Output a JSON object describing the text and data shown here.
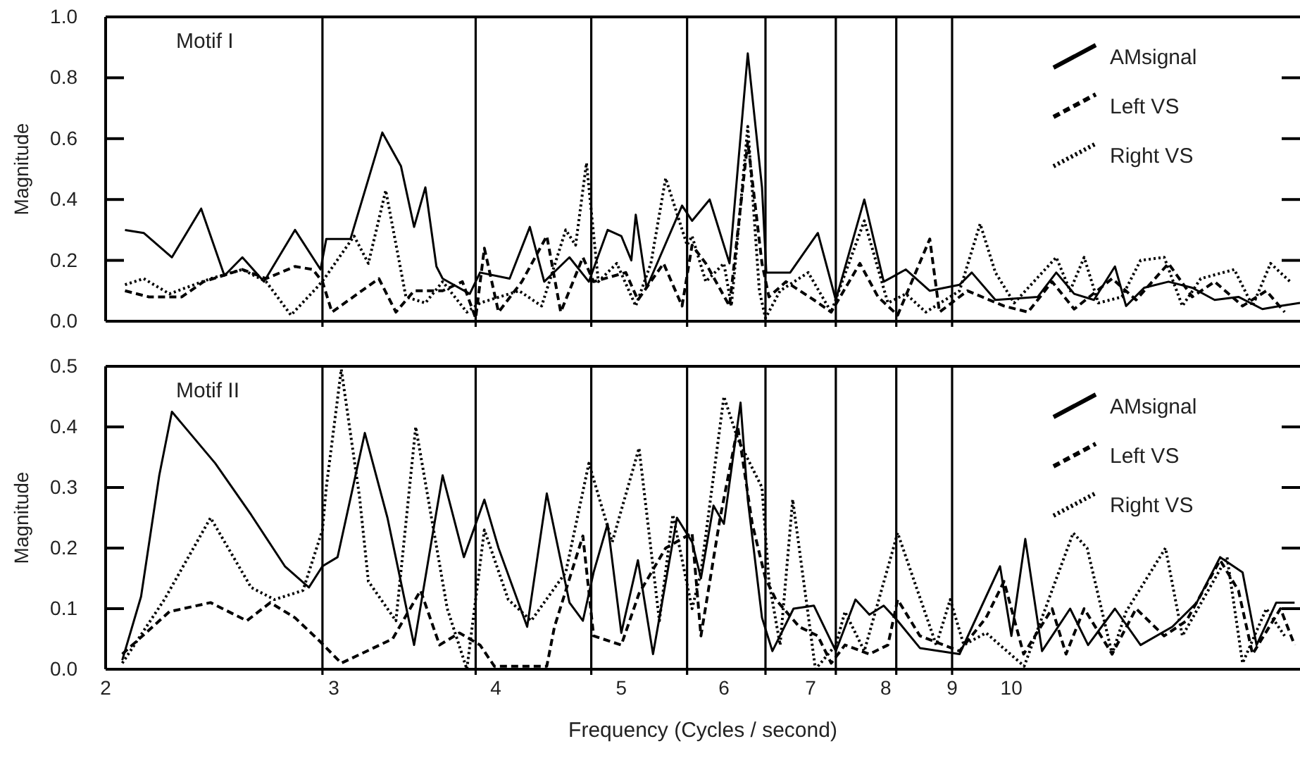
{
  "chart_data": [
    {
      "type": "line",
      "ylabel": "Magnitude",
      "annotations": [
        "Motif I"
      ],
      "log": "x",
      "xlim": [
        2,
        16.7
      ],
      "ylim": [
        0,
        1
      ],
      "xticks": [
        2,
        3,
        4,
        5,
        6,
        7,
        8,
        9,
        10
      ],
      "yticks": [
        {
          "value": 0,
          "label": "0.0"
        },
        {
          "value": 0.2,
          "label": "0.2"
        },
        {
          "value": 0.4,
          "label": "0.4"
        },
        {
          "value": 0.6,
          "label": "0.6"
        },
        {
          "value": 0.8,
          "label": "0.8"
        },
        {
          "value": 1,
          "label": "1.0"
        }
      ],
      "tick_labels": "y",
      "legend": "top right",
      "ref_lines": [
        {
          "axis": "x",
          "value": 2.94
        },
        {
          "axis": "x",
          "value": 3.86
        },
        {
          "axis": "x",
          "value": 4.74
        },
        {
          "axis": "x",
          "value": 5.62
        },
        {
          "axis": "x",
          "value": 6.46
        },
        {
          "axis": "x",
          "value": 7.32
        },
        {
          "axis": "x",
          "value": 8.15
        },
        {
          "axis": "x",
          "value": 9.0
        }
      ],
      "series": [
        {
          "name": "AMsignal",
          "color": "#000000",
          "line_style": "solid",
          "x": [
            2.07,
            2.14,
            2.25,
            2.37,
            2.47,
            2.55,
            2.65,
            2.8,
            2.93,
            2.96,
            3.09,
            3.27,
            3.38,
            3.46,
            3.53,
            3.6,
            3.64,
            3.82,
            3.89,
            4.1,
            4.25,
            4.36,
            4.56,
            4.72,
            4.88,
            5.0,
            5.09,
            5.13,
            5.23,
            5.57,
            5.67,
            5.85,
            6.06,
            6.26,
            6.42,
            6.47,
            6.75,
            7.09,
            7.32,
            7.7,
            7.97,
            8.29,
            8.65,
            9.12,
            9.32,
            9.72,
            10.48,
            10.83,
            11.18,
            11.58,
            12.02,
            12.26,
            12.66,
            13.22,
            13.79,
            14.35,
            14.97,
            15.62,
            16.1,
            16.7
          ],
          "values": [
            0.3,
            0.29,
            0.21,
            0.37,
            0.15,
            0.21,
            0.13,
            0.3,
            0.17,
            0.27,
            0.27,
            0.62,
            0.51,
            0.31,
            0.44,
            0.18,
            0.14,
            0.09,
            0.16,
            0.14,
            0.31,
            0.13,
            0.21,
            0.13,
            0.3,
            0.28,
            0.2,
            0.35,
            0.11,
            0.38,
            0.33,
            0.4,
            0.19,
            0.88,
            0.44,
            0.16,
            0.16,
            0.29,
            0.07,
            0.4,
            0.13,
            0.17,
            0.1,
            0.12,
            0.16,
            0.07,
            0.08,
            0.16,
            0.09,
            0.07,
            0.18,
            0.05,
            0.11,
            0.13,
            0.11,
            0.07,
            0.08,
            0.04,
            0.05,
            0.06
          ]
        },
        {
          "name": "Left VS",
          "color": "#000000",
          "line_style": "dashed",
          "x": [
            2.07,
            2.16,
            2.29,
            2.38,
            2.55,
            2.66,
            2.8,
            2.89,
            2.94,
            2.99,
            3.25,
            3.35,
            3.46,
            3.64,
            3.77,
            3.86,
            3.92,
            4.02,
            4.19,
            4.38,
            4.49,
            4.67,
            4.76,
            5.04,
            5.15,
            5.39,
            5.57,
            5.67,
            5.81,
            6.06,
            6.26,
            6.42,
            6.5,
            6.7,
            7.04,
            7.26,
            7.64,
            7.89,
            8.17,
            8.65,
            8.8,
            9.25,
            9.87,
            10.3,
            10.75,
            11.18,
            11.96,
            12.48,
            13.22,
            13.79,
            14.35,
            15.08,
            15.73,
            16.25
          ],
          "values": [
            0.1,
            0.08,
            0.08,
            0.13,
            0.17,
            0.14,
            0.18,
            0.17,
            0.13,
            0.03,
            0.14,
            0.03,
            0.1,
            0.1,
            0.13,
            0.01,
            0.24,
            0.03,
            0.13,
            0.28,
            0.03,
            0.21,
            0.13,
            0.16,
            0.07,
            0.19,
            0.05,
            0.25,
            0.19,
            0.05,
            0.59,
            0.19,
            0.08,
            0.13,
            0.07,
            0.03,
            0.19,
            0.08,
            0.02,
            0.27,
            0.03,
            0.1,
            0.05,
            0.03,
            0.13,
            0.04,
            0.14,
            0.07,
            0.19,
            0.08,
            0.13,
            0.05,
            0.1,
            0.03
          ]
        },
        {
          "name": "Right VS",
          "color": "#000000",
          "line_style": "dotted",
          "x": [
            2.07,
            2.14,
            2.24,
            2.41,
            2.55,
            2.66,
            2.78,
            2.91,
            2.95,
            3.11,
            3.19,
            3.29,
            3.41,
            3.53,
            3.64,
            3.8,
            3.89,
            4.17,
            4.34,
            4.53,
            4.61,
            4.7,
            4.8,
            4.96,
            5.13,
            5.27,
            5.41,
            5.62,
            5.67,
            5.81,
            6.0,
            6.08,
            6.26,
            6.39,
            6.46,
            6.63,
            6.97,
            7.26,
            7.7,
            8.03,
            8.29,
            8.59,
            9.12,
            9.46,
            9.72,
            10.05,
            10.83,
            11.1,
            11.38,
            11.67,
            12.17,
            12.58,
            13.12,
            13.55,
            14.0,
            14.86,
            15.35,
            15.85,
            16.41
          ],
          "values": [
            0.12,
            0.14,
            0.09,
            0.14,
            0.17,
            0.13,
            0.02,
            0.11,
            0.14,
            0.28,
            0.19,
            0.43,
            0.08,
            0.06,
            0.13,
            0.03,
            0.06,
            0.1,
            0.05,
            0.3,
            0.25,
            0.52,
            0.13,
            0.19,
            0.05,
            0.19,
            0.47,
            0.25,
            0.28,
            0.13,
            0.19,
            0.05,
            0.64,
            0.1,
            0.01,
            0.1,
            0.16,
            0.03,
            0.33,
            0.06,
            0.09,
            0.03,
            0.1,
            0.32,
            0.16,
            0.06,
            0.21,
            0.1,
            0.21,
            0.06,
            0.08,
            0.2,
            0.21,
            0.05,
            0.14,
            0.17,
            0.05,
            0.19,
            0.13
          ]
        }
      ]
    },
    {
      "type": "line",
      "xlabel": "Frequency (Cycles / second)",
      "ylabel": "Magnitude",
      "annotations": [
        "Motif II"
      ],
      "log": "x",
      "xlim": [
        2,
        16.7
      ],
      "ylim": [
        0,
        0.5
      ],
      "xticks": [
        2,
        3,
        4,
        5,
        6,
        7,
        8,
        9,
        10
      ],
      "yticks": [
        {
          "value": 0,
          "label": "0.0"
        },
        {
          "value": 0.1,
          "label": "0.1"
        },
        {
          "value": 0.2,
          "label": "0.2"
        },
        {
          "value": 0.3,
          "label": "0.3"
        },
        {
          "value": 0.4,
          "label": "0.4"
        },
        {
          "value": 0.5,
          "label": "0.5"
        }
      ],
      "legend": "top right",
      "ref_lines": [
        {
          "axis": "x",
          "value": 2.94
        },
        {
          "axis": "x",
          "value": 3.86
        },
        {
          "axis": "x",
          "value": 4.74
        },
        {
          "axis": "x",
          "value": 5.62
        },
        {
          "axis": "x",
          "value": 6.46
        },
        {
          "axis": "x",
          "value": 7.32
        },
        {
          "axis": "x",
          "value": 8.15
        },
        {
          "axis": "x",
          "value": 9.0
        }
      ],
      "series": [
        {
          "name": "AMsignal",
          "color": "#000000",
          "line_style": "solid",
          "x": [
            2.06,
            2.13,
            2.2,
            2.25,
            2.43,
            2.59,
            2.75,
            2.87,
            2.94,
            3.02,
            3.17,
            3.3,
            3.46,
            3.6,
            3.64,
            3.78,
            3.92,
            4.02,
            4.23,
            4.38,
            4.56,
            4.67,
            4.76,
            4.88,
            5.0,
            5.15,
            5.29,
            5.52,
            5.67,
            5.76,
            5.89,
            6.0,
            6.18,
            6.26,
            6.42,
            6.54,
            6.79,
            7.04,
            7.32,
            7.58,
            7.77,
            7.97,
            8.17,
            8.5,
            9.12,
            9.8,
            10.0,
            10.25,
            10.56,
            11.1,
            11.46,
            12.02,
            12.58,
            13.31,
            13.9,
            14.49,
            15.08,
            15.46,
            16.01,
            16.54
          ],
          "values": [
            0.015,
            0.12,
            0.32,
            0.425,
            0.34,
            0.255,
            0.17,
            0.135,
            0.17,
            0.185,
            0.39,
            0.25,
            0.04,
            0.26,
            0.32,
            0.185,
            0.28,
            0.2,
            0.07,
            0.29,
            0.11,
            0.08,
            0.16,
            0.24,
            0.06,
            0.18,
            0.025,
            0.25,
            0.21,
            0.15,
            0.27,
            0.24,
            0.44,
            0.28,
            0.085,
            0.03,
            0.1,
            0.105,
            0.03,
            0.115,
            0.09,
            0.105,
            0.08,
            0.035,
            0.025,
            0.17,
            0.055,
            0.215,
            0.03,
            0.1,
            0.04,
            0.1,
            0.04,
            0.07,
            0.11,
            0.185,
            0.16,
            0.04,
            0.11,
            0.11
          ]
        },
        {
          "name": "Left VS",
          "color": "#000000",
          "line_style": "dashed",
          "x": [
            2.06,
            2.24,
            2.41,
            2.57,
            2.68,
            2.8,
            2.93,
            3.04,
            3.33,
            3.5,
            3.62,
            3.75,
            3.89,
            3.99,
            4.38,
            4.44,
            4.67,
            4.76,
            5.0,
            5.16,
            5.41,
            5.67,
            5.76,
            5.96,
            6.15,
            6.31,
            6.46,
            6.58,
            6.86,
            7.09,
            7.26,
            7.44,
            7.77,
            8.03,
            8.17,
            8.5,
            9.12,
            9.56,
            9.87,
            10.22,
            10.75,
            11.02,
            11.38,
            11.96,
            12.48,
            13.12,
            13.65,
            14.49,
            14.97,
            15.35,
            16.13,
            16.54
          ],
          "values": [
            0.025,
            0.095,
            0.11,
            0.08,
            0.11,
            0.085,
            0.045,
            0.01,
            0.05,
            0.13,
            0.04,
            0.06,
            0.04,
            0.005,
            0.005,
            0.07,
            0.22,
            0.055,
            0.04,
            0.125,
            0.2,
            0.225,
            0.055,
            0.25,
            0.4,
            0.24,
            0.15,
            0.115,
            0.07,
            0.055,
            0.01,
            0.04,
            0.025,
            0.04,
            0.115,
            0.055,
            0.03,
            0.085,
            0.145,
            0.025,
            0.1,
            0.025,
            0.1,
            0.025,
            0.1,
            0.055,
            0.08,
            0.18,
            0.13,
            0.025,
            0.1,
            0.04
          ]
        },
        {
          "name": "Right VS",
          "color": "#000000",
          "line_style": "dotted",
          "x": [
            2.06,
            2.22,
            2.41,
            2.59,
            2.7,
            2.84,
            2.94,
            2.96,
            3.04,
            3.14,
            3.19,
            3.35,
            3.47,
            3.67,
            3.8,
            3.92,
            4.09,
            4.26,
            4.53,
            4.72,
            4.92,
            5.16,
            5.35,
            5.48,
            5.67,
            5.76,
            6.0,
            6.15,
            6.42,
            6.5,
            6.63,
            6.78,
            7.06,
            7.32,
            7.44,
            7.7,
            8.17,
            8.75,
            8.97,
            9.19,
            9.56,
            10.23,
            11.16,
            11.44,
            11.96,
            12.26,
            13.15,
            13.55,
            14.67,
            15.08,
            15.73,
            16.25
          ],
          "values": [
            0.01,
            0.115,
            0.25,
            0.135,
            0.115,
            0.13,
            0.23,
            0.3,
            0.495,
            0.285,
            0.145,
            0.08,
            0.4,
            0.1,
            0.0,
            0.23,
            0.115,
            0.08,
            0.16,
            0.34,
            0.21,
            0.365,
            0.08,
            0.255,
            0.1,
            0.16,
            0.45,
            0.38,
            0.3,
            0.145,
            0.04,
            0.28,
            0.0,
            0.04,
            0.095,
            0.03,
            0.225,
            0.04,
            0.115,
            0.04,
            0.06,
            0.005,
            0.225,
            0.2,
            0.025,
            0.095,
            0.2,
            0.055,
            0.185,
            0.01,
            0.1,
            0.055
          ]
        }
      ]
    }
  ]
}
